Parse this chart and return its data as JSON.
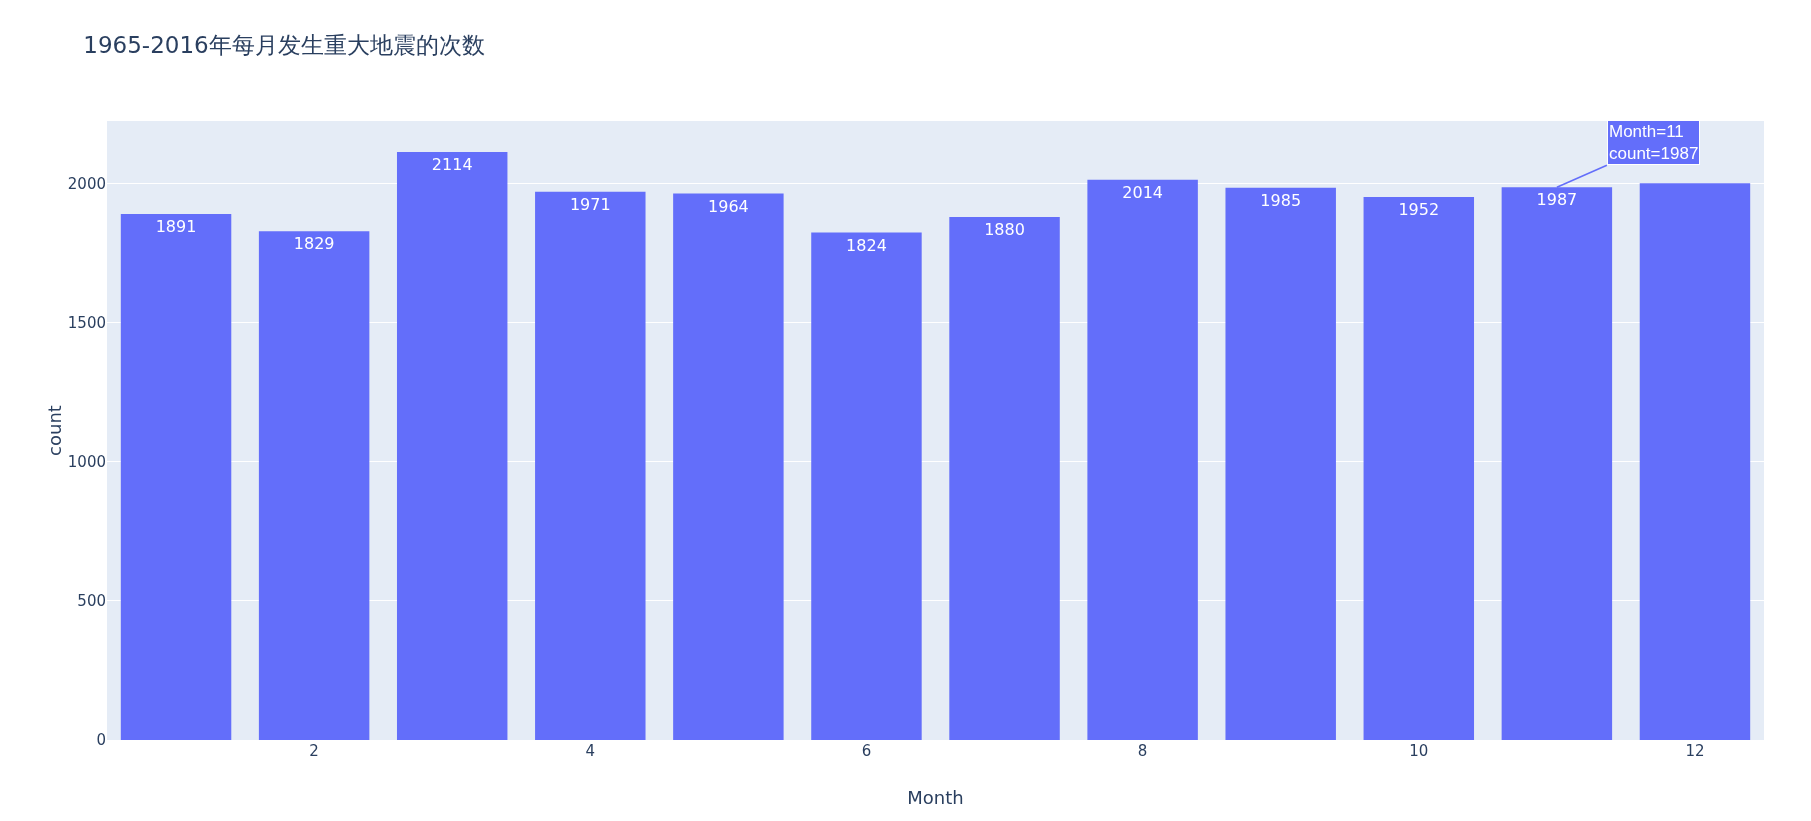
{
  "chart_data": {
    "type": "bar",
    "title": "1965-2016年每月发生重大地震的次数",
    "xlabel": "Month",
    "ylabel": "count",
    "x": [
      1,
      2,
      3,
      4,
      5,
      6,
      7,
      8,
      9,
      10,
      11,
      12
    ],
    "values": [
      1891,
      1829,
      2114,
      1971,
      1964,
      1824,
      1880,
      2014,
      1985,
      1952,
      1987,
      2001
    ],
    "value_labels": [
      "1891",
      "1829",
      "2114",
      "1971",
      "1964",
      "1824",
      "1880",
      "2014",
      "1985",
      "1952",
      "1987",
      null
    ],
    "color": "#636efa",
    "xlim": [
      0.5,
      12.5
    ],
    "xticks": [
      2,
      4,
      6,
      8,
      10,
      12
    ],
    "ylim": [
      0,
      2225
    ],
    "yticks": [
      0,
      500,
      1000,
      1500,
      2000
    ],
    "grid": "y",
    "annotations": [
      {
        "text": "Month=11\ncount=1987",
        "x": 11,
        "y": 1987
      }
    ]
  }
}
